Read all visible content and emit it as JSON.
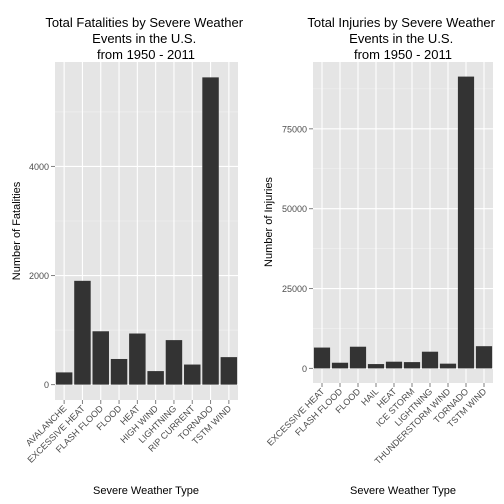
{
  "chart_data": [
    {
      "type": "bar",
      "title": [
        "Total Fatalities by Severe Weather",
        "Events in the U.S.",
        "from 1950 - 2011"
      ],
      "xlabel": "Severe Weather Type",
      "ylabel": "Number of Fatalities",
      "categories": [
        "AVALANCHE",
        "EXCESSIVE HEAT",
        "FLASH FLOOD",
        "FLOOD",
        "HEAT",
        "HIGH WIND",
        "LIGHTNING",
        "RIP CURRENT",
        "TORNADO",
        "TSTM WIND"
      ],
      "values": [
        224,
        1903,
        978,
        470,
        937,
        248,
        816,
        368,
        5633,
        504
      ],
      "yticks": [
        0,
        2000,
        4000
      ],
      "ytick_labels": [
        "0",
        "2000",
        "4000"
      ],
      "ylim": [
        -282,
        5915
      ],
      "bar_color": "#333333",
      "panel_color": "#e5e5e5",
      "grid": true
    },
    {
      "type": "bar",
      "title": [
        "Total Injuries by Severe Weather",
        "Events in the U.S.",
        "from 1950 - 2011"
      ],
      "xlabel": "Severe Weather Type",
      "ylabel": "Number of Injuries",
      "categories": [
        "EXCESSIVE HEAT",
        "FLASH FLOOD",
        "FLOOD",
        "HAIL",
        "HEAT",
        "ICE STORM",
        "LIGHTNING",
        "THUNDERSTORM WIND",
        "TORNADO",
        "TSTM WIND"
      ],
      "values": [
        6525,
        1777,
        6789,
        1361,
        2100,
        1975,
        5230,
        1488,
        91346,
        6957
      ],
      "yticks": [
        0,
        25000,
        50000,
        75000
      ],
      "ytick_labels": [
        "0",
        "25000",
        "50000",
        "75000"
      ],
      "ylim": [
        -4567,
        95913
      ],
      "bar_color": "#333333",
      "panel_color": "#e5e5e5",
      "grid": true
    }
  ]
}
